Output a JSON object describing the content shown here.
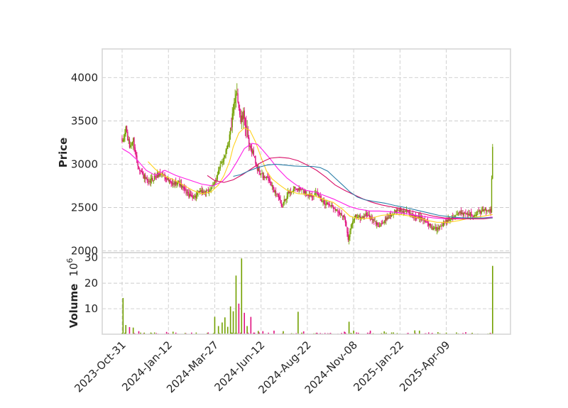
{
  "chart_data": {
    "type": "candlestick",
    "colors": {
      "up": "#73a000",
      "down": "#e0117f",
      "ma_short": "#ffd21f",
      "ma_mid": "#ff1ee6",
      "ma_long": "#d80f68",
      "ma_longest": "#2b7ea8",
      "grid": "#cccccc",
      "frame": "#d6d6d6"
    },
    "price_panel": {
      "ylabel": "Price",
      "ylim": [
        1980,
        4330
      ],
      "yticks": [
        2000,
        2500,
        3000,
        3500,
        4000
      ],
      "grid": true
    },
    "volume_panel": {
      "ylabel": "Volume",
      "exponent_label": "10",
      "exponent_power": "6",
      "ylim": [
        0,
        32
      ],
      "yticks": [
        10,
        20,
        30
      ],
      "grid": true
    },
    "x_axis": {
      "tick_labels": [
        "2023-Oct-31",
        "2024-Jan-12",
        "2024-Mar-27",
        "2024-Jun-12",
        "2024-Aug-22",
        "2024-Nov-08",
        "2025-Jan-22",
        "2025-Apr-09"
      ],
      "tick_index": [
        0,
        50,
        100,
        150,
        200,
        250,
        300,
        350
      ],
      "total_bars": 401
    },
    "price_anchors": [
      [
        0,
        3230
      ],
      [
        4,
        3420
      ],
      [
        8,
        3200
      ],
      [
        12,
        3280
      ],
      [
        16,
        3020
      ],
      [
        22,
        2880
      ],
      [
        28,
        2780
      ],
      [
        34,
        2840
      ],
      [
        42,
        2900
      ],
      [
        48,
        2840
      ],
      [
        54,
        2760
      ],
      [
        60,
        2800
      ],
      [
        66,
        2720
      ],
      [
        72,
        2640
      ],
      [
        78,
        2620
      ],
      [
        84,
        2680
      ],
      [
        92,
        2680
      ],
      [
        98,
        2740
      ],
      [
        104,
        2920
      ],
      [
        110,
        3080
      ],
      [
        116,
        3320
      ],
      [
        120,
        3600
      ],
      [
        124,
        3850
      ],
      [
        128,
        3500
      ],
      [
        132,
        3560
      ],
      [
        137,
        3200
      ],
      [
        141,
        3150
      ],
      [
        146,
        2950
      ],
      [
        152,
        2850
      ],
      [
        158,
        2820
      ],
      [
        164,
        2700
      ],
      [
        168,
        2650
      ],
      [
        172,
        2500
      ],
      [
        178,
        2650
      ],
      [
        186,
        2720
      ],
      [
        194,
        2700
      ],
      [
        202,
        2640
      ],
      [
        210,
        2660
      ],
      [
        218,
        2560
      ],
      [
        226,
        2520
      ],
      [
        234,
        2450
      ],
      [
        240,
        2380
      ],
      [
        244,
        2150
      ],
      [
        248,
        2300
      ],
      [
        252,
        2410
      ],
      [
        258,
        2380
      ],
      [
        264,
        2420
      ],
      [
        270,
        2360
      ],
      [
        276,
        2300
      ],
      [
        282,
        2320
      ],
      [
        288,
        2400
      ],
      [
        294,
        2450
      ],
      [
        300,
        2470
      ],
      [
        306,
        2450
      ],
      [
        312,
        2420
      ],
      [
        318,
        2380
      ],
      [
        324,
        2380
      ],
      [
        330,
        2320
      ],
      [
        336,
        2250
      ],
      [
        342,
        2260
      ],
      [
        348,
        2330
      ],
      [
        354,
        2380
      ],
      [
        360,
        2410
      ],
      [
        366,
        2440
      ],
      [
        372,
        2430
      ],
      [
        378,
        2420
      ],
      [
        384,
        2440
      ],
      [
        390,
        2460
      ],
      [
        394,
        2480
      ],
      [
        398,
        2450
      ],
      [
        400,
        3200
      ]
    ],
    "moving_averages": [
      {
        "color_key": "ma_short",
        "points": [
          [
            28,
            3030
          ],
          [
            36,
            2940
          ],
          [
            46,
            2860
          ],
          [
            54,
            2830
          ],
          [
            66,
            2760
          ],
          [
            76,
            2700
          ],
          [
            86,
            2660
          ],
          [
            96,
            2680
          ],
          [
            104,
            2760
          ],
          [
            110,
            2870
          ],
          [
            116,
            3030
          ],
          [
            120,
            3200
          ],
          [
            126,
            3360
          ],
          [
            132,
            3420
          ],
          [
            138,
            3390
          ],
          [
            144,
            3260
          ],
          [
            150,
            3080
          ],
          [
            156,
            2920
          ],
          [
            162,
            2830
          ],
          [
            170,
            2760
          ],
          [
            178,
            2700
          ],
          [
            190,
            2660
          ],
          [
            204,
            2650
          ],
          [
            216,
            2600
          ],
          [
            228,
            2560
          ],
          [
            238,
            2480
          ],
          [
            246,
            2400
          ],
          [
            256,
            2370
          ],
          [
            270,
            2380
          ],
          [
            280,
            2410
          ],
          [
            290,
            2420
          ],
          [
            300,
            2420
          ],
          [
            312,
            2400
          ],
          [
            320,
            2380
          ],
          [
            330,
            2350
          ],
          [
            340,
            2330
          ],
          [
            352,
            2330
          ],
          [
            364,
            2350
          ],
          [
            376,
            2380
          ],
          [
            390,
            2400
          ],
          [
            400,
            2420
          ]
        ]
      },
      {
        "color_key": "ma_mid",
        "points": [
          [
            0,
            3180
          ],
          [
            8,
            3130
          ],
          [
            16,
            3050
          ],
          [
            26,
            2930
          ],
          [
            36,
            2870
          ],
          [
            46,
            2930
          ],
          [
            58,
            2870
          ],
          [
            72,
            2820
          ],
          [
            86,
            2770
          ],
          [
            98,
            2750
          ],
          [
            108,
            2800
          ],
          [
            116,
            2890
          ],
          [
            124,
            3030
          ],
          [
            132,
            3180
          ],
          [
            140,
            3240
          ],
          [
            146,
            3230
          ],
          [
            152,
            3160
          ],
          [
            160,
            3060
          ],
          [
            168,
            2950
          ],
          [
            178,
            2840
          ],
          [
            188,
            2760
          ],
          [
            198,
            2700
          ],
          [
            208,
            2680
          ],
          [
            218,
            2640
          ],
          [
            228,
            2600
          ],
          [
            238,
            2550
          ],
          [
            246,
            2510
          ],
          [
            256,
            2480
          ],
          [
            268,
            2460
          ],
          [
            278,
            2460
          ],
          [
            290,
            2450
          ],
          [
            300,
            2440
          ],
          [
            312,
            2420
          ],
          [
            324,
            2400
          ],
          [
            336,
            2380
          ],
          [
            350,
            2370
          ],
          [
            364,
            2380
          ],
          [
            378,
            2380
          ],
          [
            390,
            2380
          ],
          [
            400,
            2390
          ]
        ]
      },
      {
        "color_key": "ma_long",
        "points": [
          [
            92,
            2870
          ],
          [
            100,
            2810
          ],
          [
            110,
            2790
          ],
          [
            120,
            2820
          ],
          [
            130,
            2880
          ],
          [
            140,
            2950
          ],
          [
            150,
            3020
          ],
          [
            160,
            3070
          ],
          [
            170,
            3080
          ],
          [
            180,
            3070
          ],
          [
            190,
            3040
          ],
          [
            200,
            2990
          ],
          [
            210,
            2930
          ],
          [
            220,
            2850
          ],
          [
            230,
            2760
          ],
          [
            240,
            2700
          ],
          [
            250,
            2650
          ],
          [
            260,
            2600
          ],
          [
            270,
            2560
          ],
          [
            280,
            2530
          ],
          [
            290,
            2510
          ],
          [
            300,
            2490
          ],
          [
            312,
            2460
          ],
          [
            324,
            2430
          ],
          [
            336,
            2400
          ],
          [
            348,
            2380
          ],
          [
            360,
            2370
          ],
          [
            375,
            2370
          ],
          [
            390,
            2370
          ],
          [
            400,
            2380
          ]
        ]
      },
      {
        "color_key": "ma_longest",
        "points": [
          [
            120,
            2860
          ],
          [
            128,
            2880
          ],
          [
            136,
            2920
          ],
          [
            146,
            2960
          ],
          [
            156,
            2990
          ],
          [
            166,
            3000
          ],
          [
            176,
            2990
          ],
          [
            186,
            2980
          ],
          [
            196,
            2975
          ],
          [
            206,
            2975
          ],
          [
            214,
            2960
          ],
          [
            222,
            2920
          ],
          [
            230,
            2840
          ],
          [
            238,
            2760
          ],
          [
            246,
            2680
          ],
          [
            254,
            2620
          ],
          [
            262,
            2590
          ],
          [
            272,
            2570
          ],
          [
            284,
            2550
          ],
          [
            296,
            2520
          ],
          [
            306,
            2500
          ],
          [
            318,
            2470
          ],
          [
            330,
            2440
          ],
          [
            342,
            2410
          ],
          [
            356,
            2390
          ],
          [
            370,
            2380
          ],
          [
            384,
            2380
          ],
          [
            400,
            2380
          ]
        ]
      }
    ],
    "volume_spikes": [
      [
        1,
        14.2
      ],
      [
        4,
        3.6
      ],
      [
        8,
        2.8
      ],
      [
        12,
        2.6
      ],
      [
        18,
        1.2
      ],
      [
        48,
        0.9
      ],
      [
        55,
        1.0
      ],
      [
        100,
        6.8
      ],
      [
        104,
        3.2
      ],
      [
        108,
        4.6
      ],
      [
        111,
        6.6
      ],
      [
        114,
        2.9
      ],
      [
        117,
        10.9
      ],
      [
        120,
        9.0
      ],
      [
        123,
        23.0
      ],
      [
        126,
        12.0
      ],
      [
        129,
        29.7
      ],
      [
        132,
        8.4
      ],
      [
        135,
        3.2
      ],
      [
        139,
        6.8
      ],
      [
        147,
        1.3
      ],
      [
        152,
        1.2
      ],
      [
        164,
        1.4
      ],
      [
        174,
        1.2
      ],
      [
        190,
        8.8
      ],
      [
        196,
        1.1
      ],
      [
        240,
        1.0
      ],
      [
        245,
        4.9
      ],
      [
        250,
        1.4
      ],
      [
        268,
        1.4
      ],
      [
        283,
        1.1
      ],
      [
        316,
        1.5
      ],
      [
        321,
        1.4
      ],
      [
        341,
        0.8
      ],
      [
        371,
        0.8
      ],
      [
        400,
        26.8
      ]
    ]
  }
}
